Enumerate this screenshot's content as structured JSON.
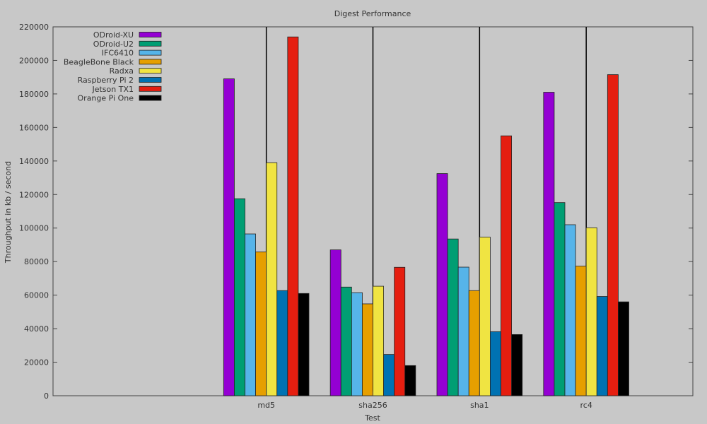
{
  "chart_data": {
    "type": "bar",
    "title": "Digest Performance",
    "xlabel": "Test",
    "ylabel": "Throughput in kb / second",
    "ylim": [
      0,
      220000
    ],
    "yticks": [
      0,
      20000,
      40000,
      60000,
      80000,
      100000,
      120000,
      140000,
      160000,
      180000,
      200000,
      220000
    ],
    "grid": false,
    "legend_position": "top-left",
    "categories": [
      "md5",
      "sha256",
      "sha1",
      "rc4"
    ],
    "series": [
      {
        "name": "ODroid-XU",
        "color": "#9400d3",
        "values": [
          189000,
          87000,
          132500,
          181000
        ]
      },
      {
        "name": "ODroid-U2",
        "color": "#009e73",
        "values": [
          117500,
          64800,
          93500,
          115200
        ]
      },
      {
        "name": "IFC6410",
        "color": "#56b4e9",
        "values": [
          96500,
          61500,
          76700,
          102000
        ]
      },
      {
        "name": "BeagleBone Black",
        "color": "#e69f00",
        "values": [
          85800,
          54800,
          62700,
          77300
        ]
      },
      {
        "name": "Radxa",
        "color": "#f0e442",
        "values": [
          139000,
          65300,
          94600,
          100200
        ]
      },
      {
        "name": "Raspberry Pi 2",
        "color": "#0072b2",
        "values": [
          62700,
          24600,
          38200,
          59200
        ]
      },
      {
        "name": "Jetson TX1",
        "color": "#e51e10",
        "values": [
          214000,
          76600,
          155000,
          191500
        ]
      },
      {
        "name": "Orange Pi One",
        "color": "#000000",
        "values": [
          61000,
          18000,
          36500,
          56000
        ]
      }
    ]
  }
}
